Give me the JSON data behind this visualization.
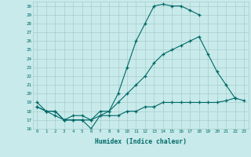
{
  "title": "",
  "xlabel": "Humidex (Indice chaleur)",
  "bg_color": "#c8eaea",
  "line_color": "#006868",
  "grid_color": "#a8cccc",
  "xlim": [
    -0.5,
    23.5
  ],
  "ylim": [
    16,
    30.5
  ],
  "yticks": [
    16,
    17,
    18,
    19,
    20,
    21,
    22,
    23,
    24,
    25,
    26,
    27,
    28,
    29,
    30
  ],
  "xticks": [
    0,
    1,
    2,
    3,
    4,
    5,
    6,
    7,
    8,
    9,
    10,
    11,
    12,
    13,
    14,
    15,
    16,
    17,
    18,
    19,
    20,
    21,
    22,
    23
  ],
  "curve1_x": [
    0,
    1,
    2,
    3,
    4,
    5,
    6,
    7,
    8,
    9,
    10,
    11,
    12,
    13,
    14,
    15,
    16,
    17,
    18
  ],
  "curve1_y": [
    19,
    18,
    18,
    17,
    17,
    17,
    16,
    17.5,
    18,
    20,
    23,
    26,
    28,
    30,
    30.2,
    30,
    30,
    29.5,
    29
  ],
  "curve2_x": [
    0,
    1,
    2,
    3,
    4,
    5,
    6,
    7,
    8,
    9,
    10,
    11,
    12,
    13,
    14,
    15,
    16,
    17,
    18,
    19,
    20,
    21,
    22
  ],
  "curve2_y": [
    18.5,
    18,
    18,
    17,
    17.5,
    17.5,
    17,
    18,
    18,
    19,
    20,
    21,
    22,
    23.5,
    24.5,
    25,
    25.5,
    26,
    26.5,
    24.5,
    22.5,
    21,
    19.5
  ],
  "curve3_x": [
    0,
    1,
    2,
    3,
    4,
    5,
    6,
    7,
    8,
    9,
    10,
    11,
    12,
    13,
    14,
    15,
    16,
    17,
    18,
    19,
    20,
    21,
    22,
    23
  ],
  "curve3_y": [
    18.5,
    18,
    17.5,
    17,
    17,
    17,
    17,
    17.5,
    17.5,
    17.5,
    18,
    18,
    18.5,
    18.5,
    19,
    19,
    19,
    19,
    19,
    19,
    19,
    19.2,
    19.5,
    19.2
  ]
}
